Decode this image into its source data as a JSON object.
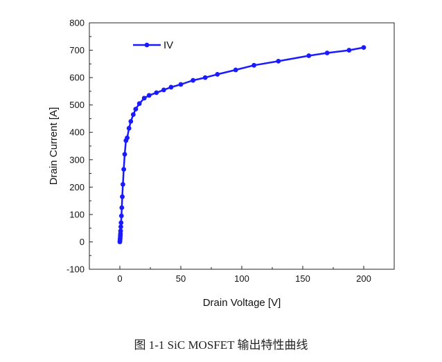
{
  "caption": "图 1-1 SiC MOSFET 输出特性曲线",
  "chart_data": {
    "type": "line",
    "title": "",
    "xlabel": "Drain Voltage [V]",
    "ylabel": "Drain Current [A]",
    "xlim": [
      -25,
      225
    ],
    "ylim": [
      -100,
      800
    ],
    "x_ticks": [
      0,
      50,
      100,
      150,
      200
    ],
    "y_ticks": [
      -100,
      0,
      100,
      200,
      300,
      400,
      500,
      600,
      700,
      800
    ],
    "grid": false,
    "legend": "top-left",
    "series": [
      {
        "name": "IV",
        "color": "#1a1aff",
        "marker": "circle",
        "x": [
          0,
          0.1,
          0.2,
          0.3,
          0.4,
          0.5,
          0.6,
          0.8,
          1.0,
          1.3,
          1.6,
          2.0,
          2.5,
          3.2,
          4.0,
          5.0,
          6.0,
          7.5,
          9.0,
          11,
          13,
          16,
          20,
          24,
          30,
          36,
          42,
          50,
          60,
          70,
          80,
          95,
          110,
          130,
          155,
          170,
          188,
          200
        ],
        "y": [
          0,
          5,
          10,
          15,
          22,
          30,
          40,
          55,
          70,
          95,
          125,
          165,
          210,
          265,
          320,
          370,
          380,
          415,
          440,
          465,
          485,
          505,
          525,
          535,
          545,
          555,
          565,
          575,
          590,
          600,
          612,
          628,
          645,
          660,
          680,
          690,
          700,
          710
        ]
      }
    ]
  }
}
